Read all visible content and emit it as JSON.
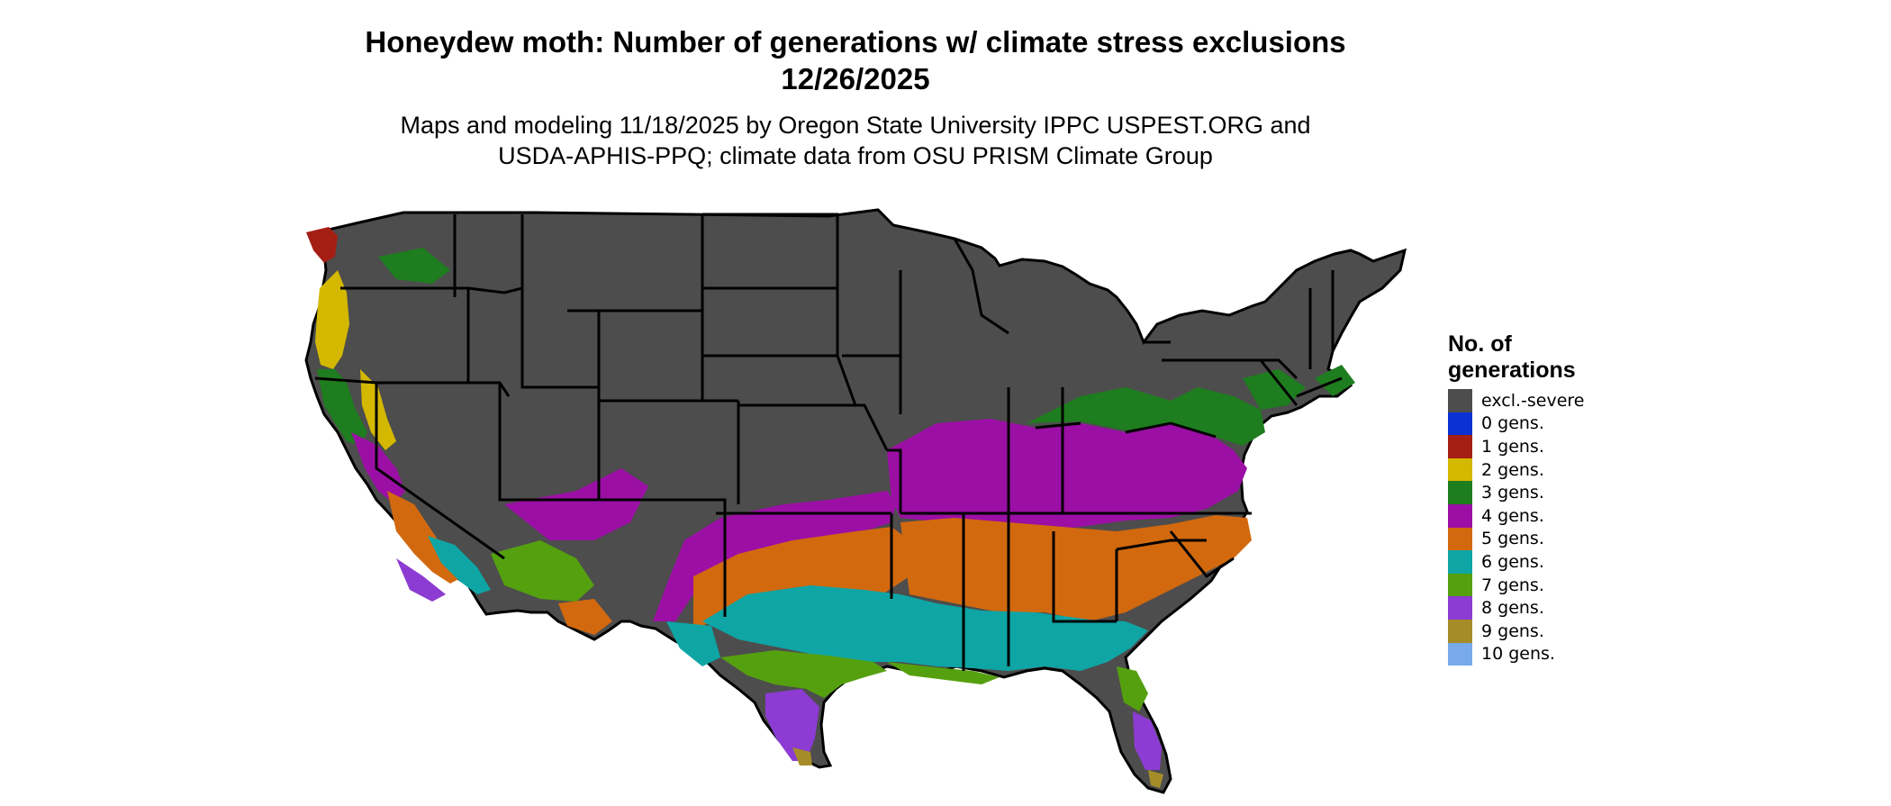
{
  "title_line1": "Honeydew moth: Number of generations w/ climate stress exclusions",
  "title_line2": "12/26/2025",
  "subtitle_line1": "Maps and modeling 11/18/2025 by Oregon State University IPPC USPEST.ORG and",
  "subtitle_line2": "USDA-APHIS-PPQ; climate data from OSU PRISM Climate Group",
  "legend": {
    "title_line1": "No. of",
    "title_line2": "generations",
    "items": [
      {
        "label": "excl.-severe",
        "color": "#4d4d4d"
      },
      {
        "label": "0 gens.",
        "color": "#0a32d2"
      },
      {
        "label": "1 gens.",
        "color": "#a51e14"
      },
      {
        "label": "2 gens.",
        "color": "#d4b800"
      },
      {
        "label": "3 gens.",
        "color": "#1e7d1e"
      },
      {
        "label": "4 gens.",
        "color": "#9b0fa5"
      },
      {
        "label": "5 gens.",
        "color": "#d2690f"
      },
      {
        "label": "6 gens.",
        "color": "#0fa5a5"
      },
      {
        "label": "7 gens.",
        "color": "#55a00f"
      },
      {
        "label": "8 gens.",
        "color": "#8c3cd2"
      },
      {
        "label": "9 gens.",
        "color": "#a58c28"
      },
      {
        "label": "10 gens.",
        "color": "#78aaeb"
      }
    ]
  }
}
